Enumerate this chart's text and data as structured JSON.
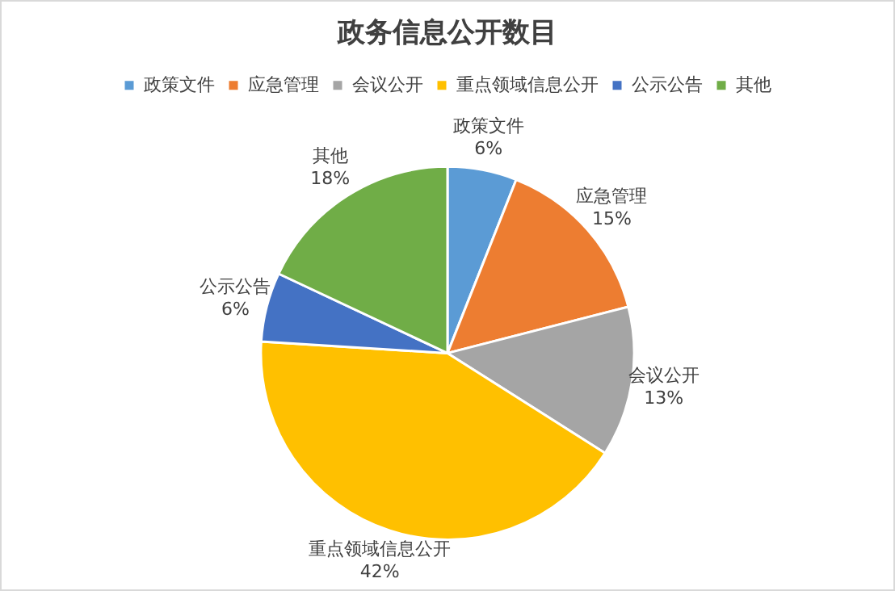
{
  "chart_data": {
    "type": "pie",
    "title": "政务信息公开数目",
    "categories": [
      "政策文件",
      "应急管理",
      "会议公开",
      "重点领域信息公开",
      "公示公告",
      "其他"
    ],
    "values": [
      6,
      15,
      13,
      42,
      6,
      18
    ],
    "value_labels": [
      "6%",
      "15%",
      "13%",
      "42%",
      "6%",
      "18%"
    ],
    "colors": [
      "#5b9bd5",
      "#ed7d31",
      "#a5a5a5",
      "#ffc000",
      "#4472c4",
      "#70ad47"
    ],
    "legend": "top"
  }
}
